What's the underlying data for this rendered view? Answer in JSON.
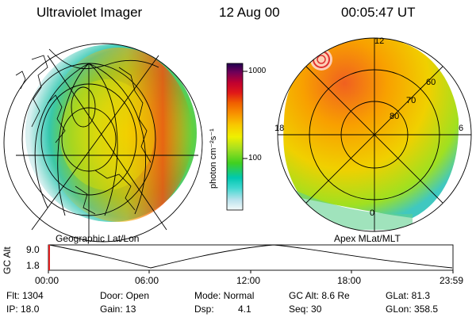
{
  "header": {
    "instrument": "Ultraviolet Imager",
    "date": "12 Aug 00",
    "time": "00:05:47 UT"
  },
  "left_panel": {
    "label": "Geographic Lat/Lon"
  },
  "right_panel": {
    "label": "Apex MLat/MLT",
    "mlt_labels": {
      "top": "12",
      "left": "18",
      "right": "6",
      "bottom": "0"
    },
    "lat_labels": [
      "60",
      "70",
      "80"
    ]
  },
  "colorbar": {
    "unit_label": "photon cm⁻²s⁻¹",
    "ticks": [
      "1000",
      "100"
    ],
    "colors": [
      "#e8f4f8",
      "#b8e2ec",
      "#40d8d0",
      "#00c8b0",
      "#40d020",
      "#a8e020",
      "#f0f000",
      "#f8c800",
      "#f89000",
      "#f06000",
      "#e01818",
      "#c00030",
      "#700058",
      "#200050"
    ]
  },
  "altitude_plot": {
    "axis_label": "GC Alt",
    "y_ticks": [
      "9.0",
      "1.8"
    ],
    "x_ticks": [
      "00:00",
      "06:00",
      "12:00",
      "18:00",
      "23:59"
    ],
    "marker_time_hours": 0.1
  },
  "info": {
    "flt": "Flt: 1304",
    "ip": "IP: 18.0",
    "door": "Door: Open",
    "gain": "Gain: 13",
    "mode": "Mode: Normal",
    "dsp_label": "Dsp:",
    "dsp_value": "4.1",
    "gcalt": "GC Alt: 8.6 Re",
    "seq": "Seq: 30",
    "glat": "GLat: 81.3",
    "glon": "GLon: 358.5"
  }
}
